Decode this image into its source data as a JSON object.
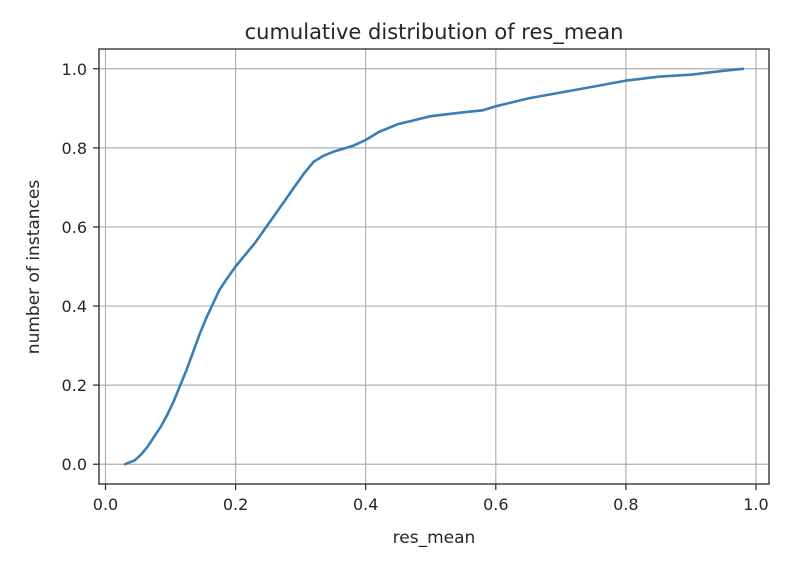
{
  "chart_data": {
    "type": "line",
    "title": "cumulative distribution of res_mean",
    "xlabel": "res_mean",
    "ylabel": "number of instances",
    "xlim": [
      -0.01,
      1.02
    ],
    "ylim": [
      -0.05,
      1.05
    ],
    "xticks": [
      0.0,
      0.2,
      0.4,
      0.6,
      0.8,
      1.0
    ],
    "xtick_labels": [
      "0.0",
      "0.2",
      "0.4",
      "0.6",
      "0.8",
      "1.0"
    ],
    "yticks": [
      0.0,
      0.2,
      0.4,
      0.6,
      0.8,
      1.0
    ],
    "ytick_labels": [
      "0.0",
      "0.2",
      "0.4",
      "0.6",
      "0.8",
      "1.0"
    ],
    "grid": true,
    "line_color": "#3b7db5",
    "series": [
      {
        "x": [
          0.03,
          0.045,
          0.055,
          0.065,
          0.075,
          0.085,
          0.095,
          0.105,
          0.115,
          0.125,
          0.135,
          0.145,
          0.155,
          0.165,
          0.175,
          0.185,
          0.2,
          0.215,
          0.23,
          0.245,
          0.26,
          0.275,
          0.29,
          0.305,
          0.32,
          0.335,
          0.35,
          0.38,
          0.4,
          0.42,
          0.45,
          0.5,
          0.55,
          0.58,
          0.6,
          0.65,
          0.7,
          0.75,
          0.8,
          0.85,
          0.9,
          0.95,
          0.98
        ],
        "y": [
          0.0,
          0.01,
          0.025,
          0.045,
          0.07,
          0.095,
          0.125,
          0.16,
          0.2,
          0.24,
          0.285,
          0.33,
          0.37,
          0.405,
          0.44,
          0.465,
          0.5,
          0.53,
          0.56,
          0.595,
          0.63,
          0.665,
          0.7,
          0.735,
          0.765,
          0.78,
          0.79,
          0.805,
          0.82,
          0.84,
          0.86,
          0.88,
          0.89,
          0.895,
          0.905,
          0.925,
          0.94,
          0.955,
          0.97,
          0.98,
          0.985,
          0.995,
          1.0
        ]
      }
    ]
  }
}
